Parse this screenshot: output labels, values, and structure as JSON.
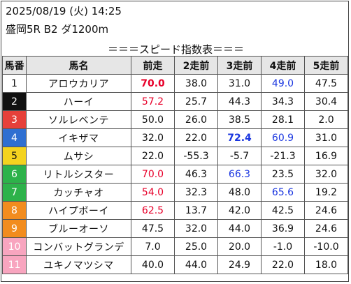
{
  "header": {
    "datetime": "2025/08/19 (火) 14:25",
    "race": "盛岡5R B2 ダ1200m"
  },
  "banner": "＝＝＝スピード指数表＝＝＝",
  "columns": [
    "馬番",
    "馬名",
    "前走",
    "2走前",
    "3走前",
    "4走前",
    "5走前"
  ],
  "colors": {
    "highlight_red": "#e8002a",
    "highlight_blue": "#1a36e0",
    "waku": [
      "#ffffff",
      "#111111",
      "#e6403a",
      "#2f6fd1",
      "#f4d31f",
      "#2db24a",
      "#f28c1e",
      "#f8a5bf"
    ]
  },
  "rows": [
    {
      "num": "1",
      "waku": 1,
      "name": "アロウカリア",
      "values": [
        "70.0",
        "38.0",
        "31.0",
        "49.0",
        "47.5"
      ],
      "styles": [
        "red bold",
        "",
        "",
        "blue",
        ""
      ]
    },
    {
      "num": "2",
      "waku": 2,
      "name": "ハーイ",
      "values": [
        "57.2",
        "25.7",
        "44.3",
        "34.3",
        "30.4"
      ],
      "styles": [
        "red",
        "",
        "",
        "",
        ""
      ]
    },
    {
      "num": "3",
      "waku": 3,
      "name": "ソルレベンテ",
      "values": [
        "50.0",
        "26.0",
        "38.5",
        "28.1",
        "2.0"
      ],
      "styles": [
        "",
        "",
        "",
        "",
        ""
      ]
    },
    {
      "num": "4",
      "waku": 4,
      "name": "イキザマ",
      "values": [
        "32.0",
        "22.0",
        "72.4",
        "60.9",
        "31.0"
      ],
      "styles": [
        "",
        "",
        "blue bold",
        "blue",
        ""
      ]
    },
    {
      "num": "5",
      "waku": 5,
      "name": "ムサシ",
      "values": [
        "22.0",
        "-55.3",
        "-5.7",
        "-21.3",
        "16.9"
      ],
      "styles": [
        "",
        "",
        "",
        "",
        ""
      ]
    },
    {
      "num": "6",
      "waku": 6,
      "name": "リトルシスター",
      "values": [
        "70.0",
        "46.3",
        "66.3",
        "23.5",
        "32.0"
      ],
      "styles": [
        "red",
        "",
        "blue",
        "",
        ""
      ]
    },
    {
      "num": "7",
      "waku": 6,
      "name": "カッチャオ",
      "values": [
        "54.0",
        "32.3",
        "48.0",
        "65.6",
        "19.2"
      ],
      "styles": [
        "red",
        "",
        "",
        "blue",
        ""
      ]
    },
    {
      "num": "8",
      "waku": 7,
      "name": "ハイプボーイ",
      "values": [
        "62.5",
        "13.7",
        "42.0",
        "42.5",
        "24.6"
      ],
      "styles": [
        "red",
        "",
        "",
        "",
        ""
      ]
    },
    {
      "num": "9",
      "waku": 7,
      "name": "ブルーオーソ",
      "values": [
        "47.5",
        "32.0",
        "44.0",
        "36.9",
        "24.6"
      ],
      "styles": [
        "",
        "",
        "",
        "",
        ""
      ]
    },
    {
      "num": "10",
      "waku": 8,
      "name": "コンバットグランデ",
      "values": [
        "7.0",
        "25.0",
        "20.0",
        "-1.0",
        "-10.0"
      ],
      "styles": [
        "",
        "",
        "",
        "",
        ""
      ]
    },
    {
      "num": "11",
      "waku": 8,
      "name": "ユキノマツシマ",
      "values": [
        "40.0",
        "44.0",
        "24.9",
        "22.0",
        "18.0"
      ],
      "styles": [
        "",
        "",
        "",
        "",
        ""
      ]
    }
  ]
}
